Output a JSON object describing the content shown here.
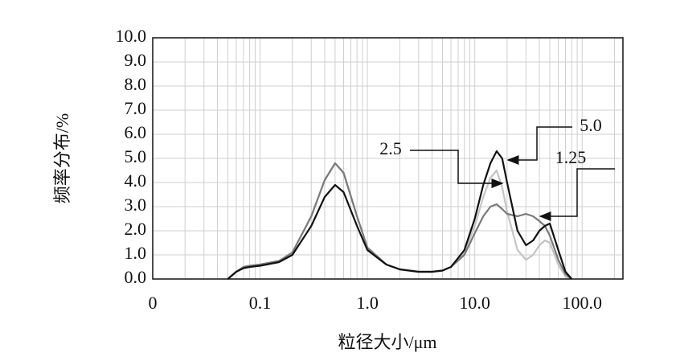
{
  "chart_data": {
    "type": "line",
    "x_label": "粒径大小/μm",
    "y_label": "频率分布/%",
    "log_x": true,
    "grid": true,
    "xlim": [
      0.01,
      240
    ],
    "xticks": [
      {
        "value": 0.01,
        "label": "0"
      },
      0.1,
      {
        "value": 1,
        "label": "1.0"
      },
      {
        "value": 10,
        "label": "10.0"
      },
      {
        "value": 100,
        "label": "100.0"
      }
    ],
    "ylim": [
      0,
      10
    ],
    "yticks": [
      {
        "value": 0,
        "label": "0.0"
      },
      {
        "value": 1,
        "label": "1.0"
      },
      {
        "value": 2,
        "label": "2.0"
      },
      {
        "value": 3,
        "label": "3.0"
      },
      {
        "value": 4,
        "label": "4.0"
      },
      {
        "value": 5,
        "label": "5.0"
      },
      {
        "value": 6,
        "label": "6.0"
      },
      {
        "value": 7,
        "label": "7.0"
      },
      {
        "value": 8,
        "label": "8.0"
      },
      {
        "value": 9,
        "label": "9.0"
      },
      {
        "value": 10,
        "label": "10.0"
      }
    ],
    "x": [
      0.05,
      0.06,
      0.07,
      0.08,
      0.1,
      0.15,
      0.2,
      0.3,
      0.4,
      0.5,
      0.6,
      0.8,
      1.0,
      1.5,
      2,
      3,
      4,
      5,
      6,
      8,
      10,
      12,
      14,
      16,
      18,
      20,
      25,
      30,
      35,
      40,
      45,
      50,
      60,
      70,
      80
    ],
    "series": [
      {
        "name": "2.5",
        "color": "#c4c4c4",
        "values": [
          0,
          0.3,
          0.5,
          0.55,
          0.6,
          0.75,
          1.1,
          2.6,
          4.1,
          4.8,
          4.4,
          2.6,
          1.3,
          0.6,
          0.4,
          0.3,
          0.3,
          0.35,
          0.5,
          1.1,
          2.2,
          3.4,
          4.2,
          4.5,
          3.8,
          2.8,
          1.2,
          0.8,
          1.0,
          1.4,
          1.6,
          1.5,
          0.6,
          0.1,
          0
        ]
      },
      {
        "name": "1.25",
        "color": "#7a7a7a",
        "values": [
          0,
          0.3,
          0.5,
          0.55,
          0.6,
          0.75,
          1.1,
          2.6,
          4.1,
          4.8,
          4.4,
          2.6,
          1.3,
          0.6,
          0.4,
          0.3,
          0.3,
          0.35,
          0.5,
          1.0,
          1.9,
          2.6,
          3.0,
          3.1,
          2.9,
          2.7,
          2.6,
          2.7,
          2.6,
          2.4,
          2.2,
          1.8,
          0.8,
          0.2,
          0
        ]
      },
      {
        "name": "5.0",
        "color": "#111111",
        "values": [
          0,
          0.3,
          0.45,
          0.5,
          0.55,
          0.7,
          1.0,
          2.2,
          3.4,
          3.9,
          3.6,
          2.2,
          1.2,
          0.6,
          0.4,
          0.3,
          0.3,
          0.35,
          0.5,
          1.2,
          2.5,
          3.9,
          4.8,
          5.3,
          5.0,
          4.0,
          2.0,
          1.4,
          1.6,
          2.0,
          2.2,
          2.3,
          1.2,
          0.3,
          0
        ]
      }
    ]
  }
}
